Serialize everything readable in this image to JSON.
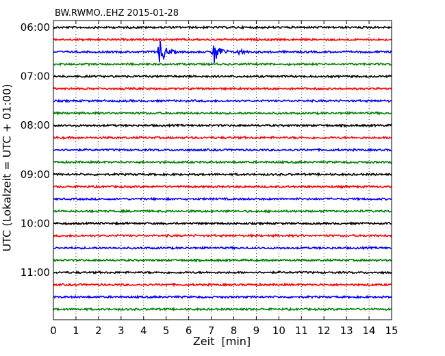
{
  "chart_data": {
    "type": "line",
    "title": "BW.RWMO..EHZ 2015-01-28",
    "xlabel": "Zeit  [min]",
    "ylabel": "UTC (Lokalzeit = UTC + 01:00)",
    "xlim": [
      0,
      15
    ],
    "x_ticks": [
      "0",
      "1",
      "2",
      "3",
      "4",
      "5",
      "6",
      "7",
      "8",
      "9",
      "10",
      "11",
      "12",
      "13",
      "14",
      "15"
    ],
    "y_tick_labels": [
      "06:00",
      "07:00",
      "08:00",
      "09:00",
      "10:00",
      "11:00"
    ],
    "trace_interval_minutes": 15,
    "trace_count": 24,
    "trace_colors": [
      "#000000",
      "#ff0000",
      "#0000ff",
      "#008000"
    ],
    "grid": "vertical dotted at each minute",
    "events": [
      {
        "trace_start": "06:30",
        "minute": 4.7,
        "amplitude": "large"
      },
      {
        "trace_start": "06:30",
        "minute": 7.1,
        "amplitude": "large"
      },
      {
        "trace_start": "06:30",
        "minute": 8.2,
        "amplitude": "small"
      }
    ]
  }
}
